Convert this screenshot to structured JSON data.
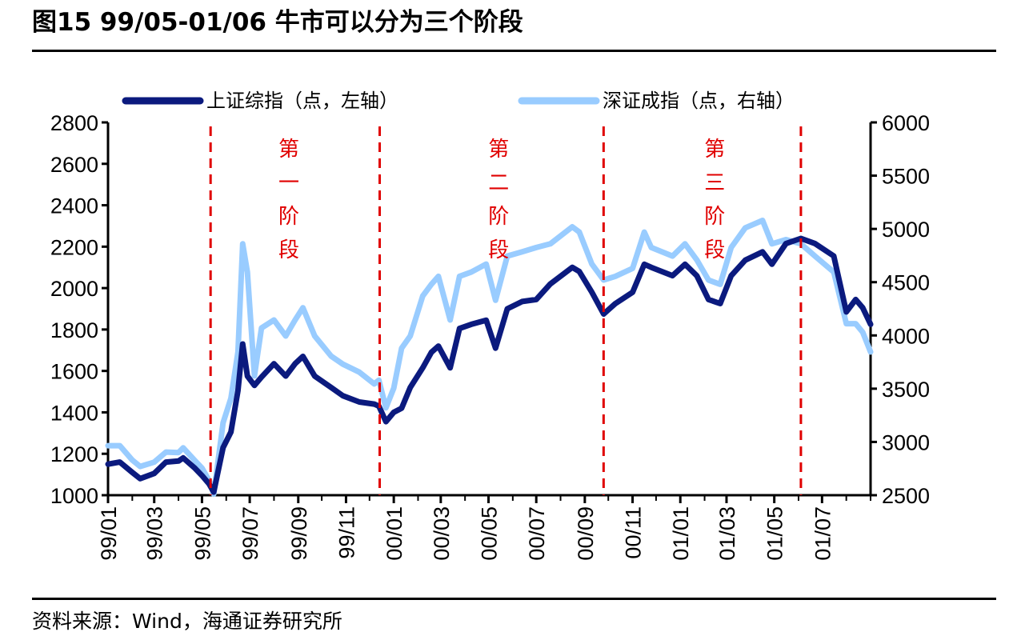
{
  "title": "图15 99/05-01/06 牛市可以分为三个阶段",
  "source": "资料来源：Wind，海通证券研究所",
  "chart_data": {
    "type": "line",
    "xlim": [
      "1999-01-01",
      "2001-09-01"
    ],
    "x_tick_labels": [
      "99/01",
      "99/03",
      "99/05",
      "99/07",
      "99/09",
      "99/11",
      "00/01",
      "00/03",
      "00/05",
      "00/07",
      "00/09",
      "00/11",
      "01/01",
      "01/03",
      "01/05",
      "01/07"
    ],
    "x_tick_dates": [
      "1999-01-01",
      "1999-03-01",
      "1999-05-01",
      "1999-07-01",
      "1999-09-01",
      "1999-11-01",
      "2000-01-01",
      "2000-03-01",
      "2000-05-01",
      "2000-07-01",
      "2000-09-01",
      "2000-11-01",
      "2001-01-01",
      "2001-03-01",
      "2001-05-01",
      "2001-07-01"
    ],
    "y_left": {
      "range": [
        1000,
        2800
      ],
      "ticks": [
        1000,
        1200,
        1400,
        1600,
        1800,
        2000,
        2200,
        2400,
        2600,
        2800
      ]
    },
    "y_right": {
      "range": [
        2500,
        6000
      ],
      "ticks": [
        2500,
        3000,
        3500,
        4000,
        4500,
        5000,
        5500,
        6000
      ]
    },
    "grid": false,
    "legend_position": "top",
    "dates": [
      "1999-01-01",
      "1999-01-16",
      "1999-02-01",
      "1999-02-11",
      "1999-03-01",
      "1999-03-16",
      "1999-04-01",
      "1999-04-07",
      "1999-04-22",
      "1999-05-01",
      "1999-05-10",
      "1999-05-16",
      "1999-05-28",
      "1999-06-07",
      "1999-06-16",
      "1999-06-22",
      "1999-06-28",
      "1999-07-07",
      "1999-07-16",
      "1999-08-01",
      "1999-08-16",
      "1999-08-28",
      "1999-09-07",
      "1999-09-22",
      "1999-10-13",
      "1999-10-28",
      "1999-11-18",
      "1999-12-07",
      "1999-12-13",
      "1999-12-22",
      "2000-01-01",
      "2000-01-11",
      "2000-01-22",
      "2000-02-07",
      "2000-02-18",
      "2000-02-27",
      "2000-03-13",
      "2000-03-25",
      "2000-04-09",
      "2000-04-28",
      "2000-05-10",
      "2000-05-25",
      "2000-06-13",
      "2000-07-01",
      "2000-07-19",
      "2000-08-16",
      "2000-08-25",
      "2000-09-10",
      "2000-09-25",
      "2000-10-10",
      "2000-11-01",
      "2000-11-16",
      "2000-11-25",
      "2000-12-22",
      "2001-01-07",
      "2001-01-22",
      "2001-02-06",
      "2001-02-21",
      "2001-03-07",
      "2001-03-25",
      "2001-04-16",
      "2001-04-28",
      "2001-05-16",
      "2001-06-04",
      "2001-06-22",
      "2001-07-16",
      "2001-08-01",
      "2001-08-13",
      "2001-08-22",
      "2001-09-01"
    ],
    "series": [
      {
        "name": "上证综指（点，左轴）",
        "axis": "left",
        "color": "#0b1a7e",
        "values": [
          1150,
          1160,
          1110,
          1080,
          1105,
          1160,
          1165,
          1180,
          1130,
          1095,
          1055,
          1015,
          1230,
          1305,
          1505,
          1730,
          1575,
          1530,
          1570,
          1635,
          1575,
          1635,
          1670,
          1575,
          1520,
          1480,
          1450,
          1440,
          1430,
          1355,
          1400,
          1420,
          1520,
          1615,
          1690,
          1720,
          1615,
          1805,
          1825,
          1845,
          1710,
          1900,
          1935,
          1945,
          2020,
          2100,
          2080,
          1980,
          1875,
          1925,
          1980,
          2115,
          2100,
          2060,
          2115,
          2060,
          1945,
          1925,
          2060,
          2135,
          2175,
          2115,
          2215,
          2240,
          2215,
          2155,
          1885,
          1945,
          1905,
          1825
        ]
      },
      {
        "name": "深证成指（点，右轴）",
        "axis": "right",
        "color": "#99ccff",
        "values": [
          2965,
          2965,
          2830,
          2770,
          2810,
          2905,
          2900,
          2945,
          2825,
          2755,
          2640,
          2510,
          3180,
          3410,
          3845,
          4860,
          4595,
          3620,
          4070,
          4145,
          3995,
          4145,
          4260,
          3995,
          3805,
          3730,
          3655,
          3545,
          3580,
          3320,
          3505,
          3880,
          3995,
          4370,
          4480,
          4555,
          4145,
          4555,
          4595,
          4670,
          4330,
          4745,
          4785,
          4825,
          4860,
          5020,
          4970,
          4670,
          4520,
          4555,
          4630,
          4970,
          4825,
          4745,
          4860,
          4710,
          4520,
          4480,
          4825,
          5010,
          5080,
          4860,
          4900,
          4860,
          4745,
          4595,
          4110,
          4110,
          4030,
          3845
        ]
      }
    ],
    "dividers": [
      "1999-05-12",
      "1999-12-14",
      "2000-09-25",
      "2001-06-04"
    ],
    "divider_color": "#e00000",
    "annotations": [
      {
        "text": "第一阶段",
        "at": "1999-08-20"
      },
      {
        "text": "第二阶段",
        "at": "2000-05-14"
      },
      {
        "text": "第三阶段",
        "at": "2001-02-14"
      }
    ]
  }
}
